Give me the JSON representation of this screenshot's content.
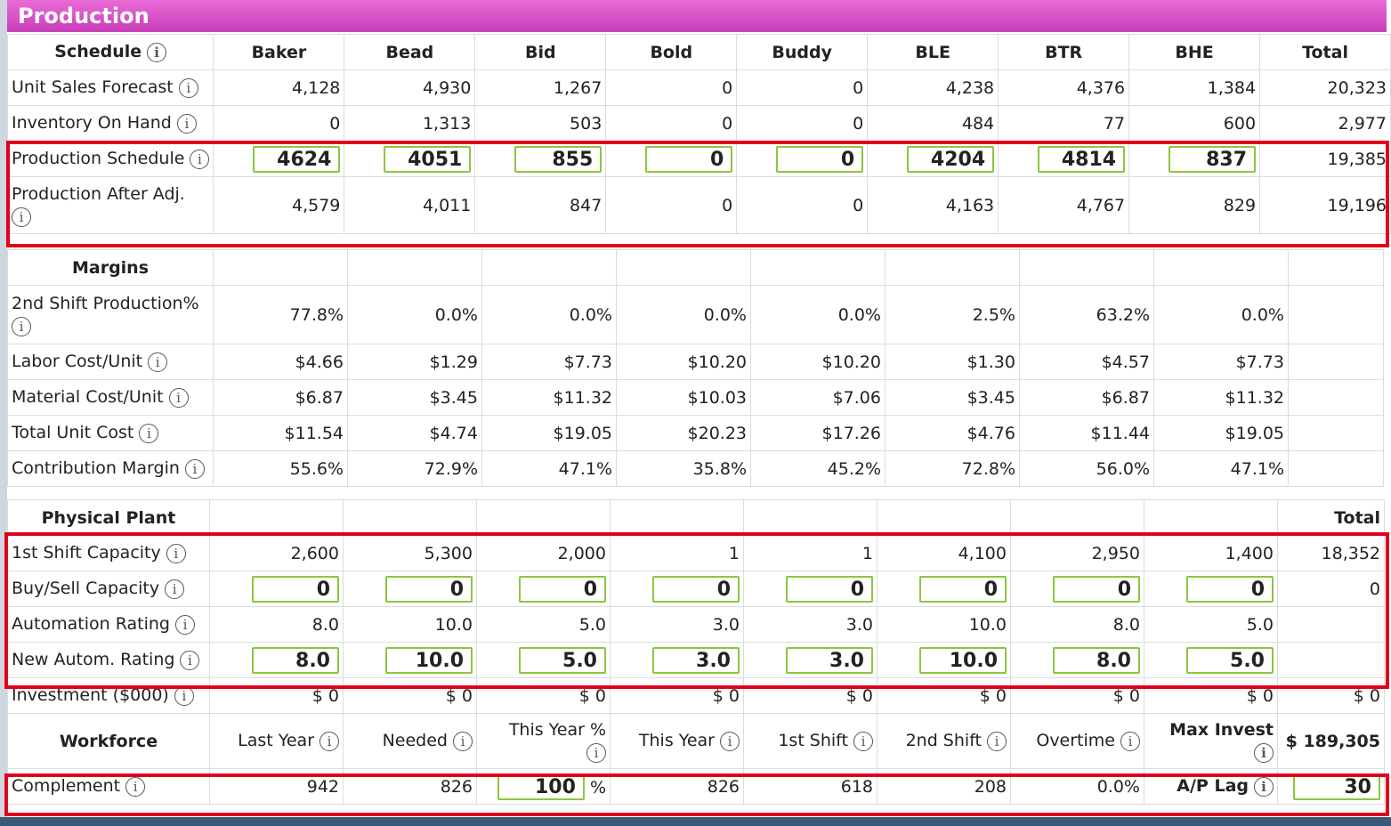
{
  "header": {
    "title": "Production"
  },
  "products": [
    "Baker",
    "Bead",
    "Bid",
    "Bold",
    "Buddy",
    "BLE",
    "BTR",
    "BHE"
  ],
  "schedule": {
    "title": "Schedule",
    "total_label": "Total",
    "unit_sales_forecast": {
      "label": "Unit Sales Forecast",
      "values": [
        "4,128",
        "4,930",
        "1,267",
        "0",
        "0",
        "4,238",
        "4,376",
        "1,384"
      ],
      "total": "20,323"
    },
    "inventory_on_hand": {
      "label": "Inventory On Hand",
      "values": [
        "0",
        "1,313",
        "503",
        "0",
        "0",
        "484",
        "77",
        "600"
      ],
      "total": "2,977"
    },
    "production_schedule": {
      "label": "Production Schedule",
      "values": [
        "4624",
        "4051",
        "855",
        "0",
        "0",
        "4204",
        "4814",
        "837"
      ],
      "total": "19,385"
    },
    "production_after_adj": {
      "label": "Production After Adj.",
      "values": [
        "4,579",
        "4,011",
        "847",
        "0",
        "0",
        "4,163",
        "4,767",
        "829"
      ],
      "total": "19,196"
    }
  },
  "margins": {
    "title": "Margins",
    "second_shift": {
      "label": "2nd Shift Production%",
      "values": [
        "77.8%",
        "0.0%",
        "0.0%",
        "0.0%",
        "0.0%",
        "2.5%",
        "63.2%",
        "0.0%"
      ]
    },
    "labor_cost": {
      "label": "Labor Cost/Unit",
      "values": [
        "$4.66",
        "$1.29",
        "$7.73",
        "$10.20",
        "$10.20",
        "$1.30",
        "$4.57",
        "$7.73"
      ]
    },
    "material_cost": {
      "label": "Material Cost/Unit",
      "values": [
        "$6.87",
        "$3.45",
        "$11.32",
        "$10.03",
        "$7.06",
        "$3.45",
        "$6.87",
        "$11.32"
      ]
    },
    "total_unit_cost": {
      "label": "Total Unit Cost",
      "values": [
        "$11.54",
        "$4.74",
        "$19.05",
        "$20.23",
        "$17.26",
        "$4.76",
        "$11.44",
        "$19.05"
      ]
    },
    "contribution_margin": {
      "label": "Contribution Margin",
      "values": [
        "55.6%",
        "72.9%",
        "47.1%",
        "35.8%",
        "45.2%",
        "72.8%",
        "56.0%",
        "47.1%"
      ]
    }
  },
  "plant": {
    "title": "Physical Plant",
    "total_label": "Total",
    "first_shift_capacity": {
      "label": "1st Shift Capacity",
      "values": [
        "2,600",
        "5,300",
        "2,000",
        "1",
        "1",
        "4,100",
        "2,950",
        "1,400"
      ],
      "total": "18,352"
    },
    "buy_sell_capacity": {
      "label": "Buy/Sell Capacity",
      "values": [
        "0",
        "0",
        "0",
        "0",
        "0",
        "0",
        "0",
        "0"
      ],
      "total": "0"
    },
    "automation_rating": {
      "label": "Automation Rating",
      "values": [
        "8.0",
        "10.0",
        "5.0",
        "3.0",
        "3.0",
        "10.0",
        "8.0",
        "5.0"
      ]
    },
    "new_autom_rating": {
      "label": "New Autom. Rating",
      "values": [
        "8.0",
        "10.0",
        "5.0",
        "3.0",
        "3.0",
        "10.0",
        "8.0",
        "5.0"
      ]
    },
    "investment": {
      "label": "Investment ($000)",
      "values": [
        "$ 0",
        "$ 0",
        "$ 0",
        "$ 0",
        "$ 0",
        "$ 0",
        "$ 0",
        "$ 0"
      ],
      "total": "$ 0"
    }
  },
  "workforce": {
    "title": "Workforce",
    "cols": {
      "last_year": "Last Year",
      "needed": "Needed",
      "this_year_pct": "This Year %",
      "this_year": "This Year",
      "first_shift": "1st Shift",
      "second_shift": "2nd Shift",
      "overtime": "Overtime",
      "max_invest": "Max Invest"
    },
    "max_invest_value": "$ 189,305",
    "complement": {
      "label": "Complement",
      "last_year": "942",
      "needed": "826",
      "this_year_pct": "100",
      "pct_sign": "%",
      "this_year": "826",
      "first_shift": "618",
      "second_shift": "208",
      "overtime": "0.0%"
    },
    "ap_lag": {
      "label": "A/P Lag",
      "value": "30"
    }
  },
  "colors": {
    "header": "#d455c8",
    "highlight": "#e0001b",
    "input_border": "#8cc63f"
  }
}
